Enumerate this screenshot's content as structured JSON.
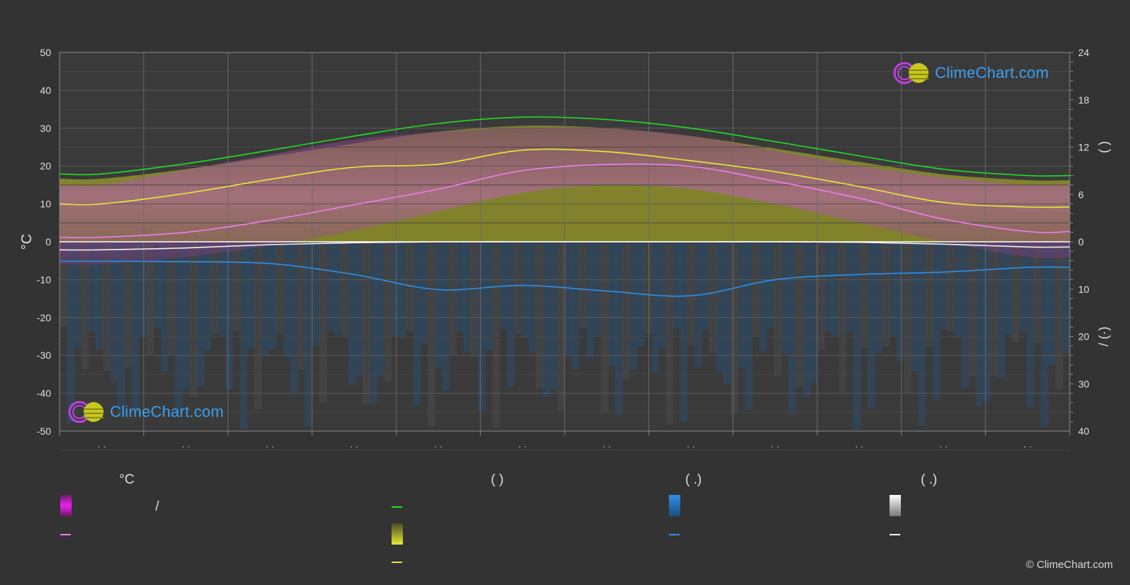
{
  "chart_data": {
    "type": "area",
    "title": "",
    "y_left": {
      "label": "°C",
      "range": [
        -50,
        50
      ],
      "ticks": [
        50,
        40,
        30,
        20,
        10,
        0,
        -10,
        -20,
        -30,
        -40,
        -50
      ]
    },
    "y_right_top": {
      "label": "(   )",
      "range": [
        0,
        24
      ],
      "ticks": [
        24,
        18,
        12,
        6,
        0
      ]
    },
    "y_right_bottom": {
      "label": "/ (·)",
      "range": [
        0,
        40
      ],
      "ticks": [
        10,
        20,
        30,
        40
      ]
    },
    "x": {
      "categories": [
        "· ·",
        "· ·",
        "· ·",
        "· ·",
        "· ·",
        "· ·",
        "· ·",
        "· ·",
        "· ·",
        "· ·",
        "· ·",
        "· ·"
      ]
    },
    "series": [
      {
        "key": "daylight",
        "color": "#22dd22",
        "axis": "right_top",
        "values": [
          8.6,
          9.9,
          11.6,
          13.4,
          15.0,
          15.8,
          15.5,
          14.4,
          12.7,
          10.9,
          9.2,
          8.4
        ]
      },
      {
        "key": "sunshine",
        "color": "#e8e83a",
        "axis": "left",
        "values": [
          10,
          12.8,
          16.5,
          19.7,
          20.5,
          24.2,
          23.8,
          21.4,
          18.5,
          14.6,
          10.4,
          9.2
        ]
      },
      {
        "key": "temp_mean",
        "color": "#f07cf0",
        "axis": "left",
        "values": [
          1.2,
          2.5,
          5.7,
          9.8,
          13.9,
          18.8,
          20.4,
          19.9,
          16.0,
          11.5,
          6.0,
          2.7
        ]
      },
      {
        "key": "precipitation",
        "color": "#2f8fe6",
        "axis": "right_bottom",
        "values": [
          4.1,
          4.2,
          4.6,
          6.9,
          10.1,
          9.2,
          10.4,
          11.4,
          8.0,
          6.9,
          6.4,
          5.4
        ]
      },
      {
        "key": "snow",
        "color": "#f0f0f0",
        "axis": "right_bottom",
        "values": [
          1.7,
          1.3,
          0.6,
          0.2,
          0.0,
          0.0,
          0.0,
          0.0,
          0.0,
          0.1,
          0.5,
          1.1
        ]
      }
    ],
    "temp_band": {
      "max": [
        15,
        19,
        23,
        27,
        29,
        30,
        30,
        28,
        24,
        20,
        17,
        15
      ],
      "min": [
        -6,
        -4,
        -1,
        3,
        8,
        13,
        15,
        14,
        10,
        5,
        0,
        -4
      ]
    },
    "grid": true
  },
  "legend": {
    "col1_head": "°C",
    "col1_slash": "/",
    "col2_head": "(          )",
    "col3_head": "(   .)",
    "col4_head": "(   .)"
  },
  "brand": {
    "logo_text": "ClimeChart.com",
    "copyright": "© ClimeChart.com"
  },
  "colors": {
    "background": "#333333",
    "grid": "#555555",
    "axis_text": "#e0e0e0"
  }
}
